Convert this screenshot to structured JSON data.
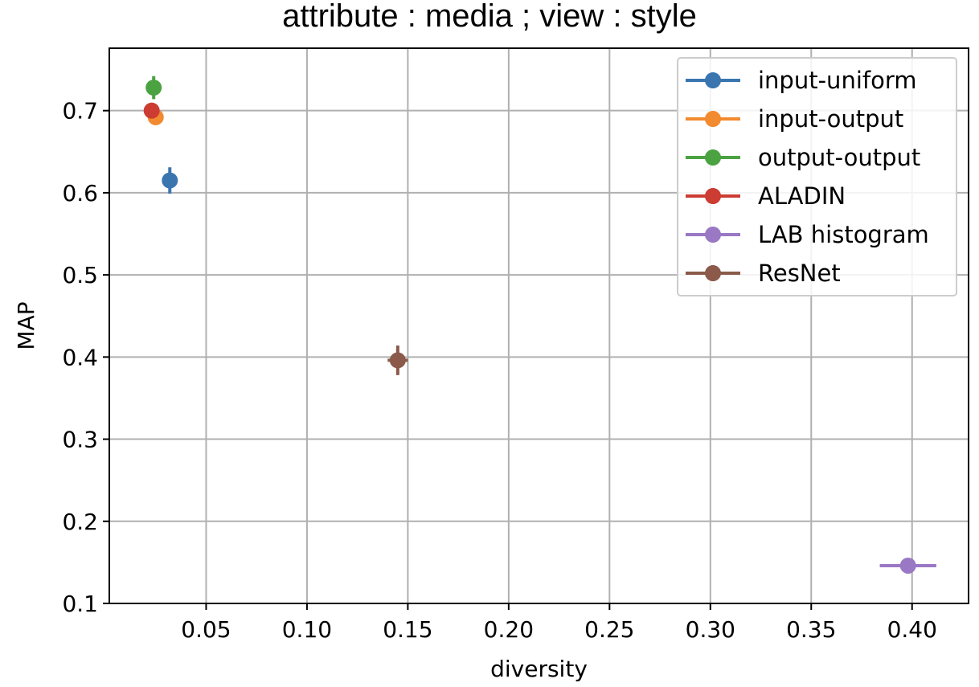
{
  "chart_data": {
    "type": "scatter",
    "title": "attribute : media ; view : style",
    "xlabel": "diversity",
    "ylabel": "MAP",
    "xlim": [
      0.002,
      0.428
    ],
    "ylim": [
      0.1,
      0.776
    ],
    "xticks": [
      0.05,
      0.1,
      0.15,
      0.2,
      0.25,
      0.3,
      0.35,
      0.4
    ],
    "xtick_labels": [
      "0.05",
      "0.10",
      "0.15",
      "0.20",
      "0.25",
      "0.30",
      "0.35",
      "0.40"
    ],
    "yticks": [
      0.1,
      0.2,
      0.3,
      0.4,
      0.5,
      0.6,
      0.7
    ],
    "ytick_labels": [
      "0.1",
      "0.2",
      "0.3",
      "0.4",
      "0.5",
      "0.6",
      "0.7"
    ],
    "grid": true,
    "legend_position": "top-right",
    "series": [
      {
        "name": "input-uniform",
        "color": "#3a75b0",
        "x": 0.032,
        "y": 0.615,
        "xerr": 0.001,
        "yerr": 0.016
      },
      {
        "name": "input-output",
        "color": "#f28a30",
        "x": 0.025,
        "y": 0.692,
        "xerr": 0.001,
        "yerr": 0.008
      },
      {
        "name": "output-output",
        "color": "#4aa240",
        "x": 0.024,
        "y": 0.728,
        "xerr": 0.001,
        "yerr": 0.014
      },
      {
        "name": "ALADIN",
        "color": "#cc3c33",
        "x": 0.023,
        "y": 0.7,
        "xerr": 0.001,
        "yerr": 0.008
      },
      {
        "name": "LAB histogram",
        "color": "#9a78c4",
        "x": 0.398,
        "y": 0.146,
        "xerr": 0.014,
        "yerr": 0.005
      },
      {
        "name": "ResNet",
        "color": "#8b5a4a",
        "x": 0.145,
        "y": 0.396,
        "xerr": 0.005,
        "yerr": 0.018
      }
    ]
  }
}
